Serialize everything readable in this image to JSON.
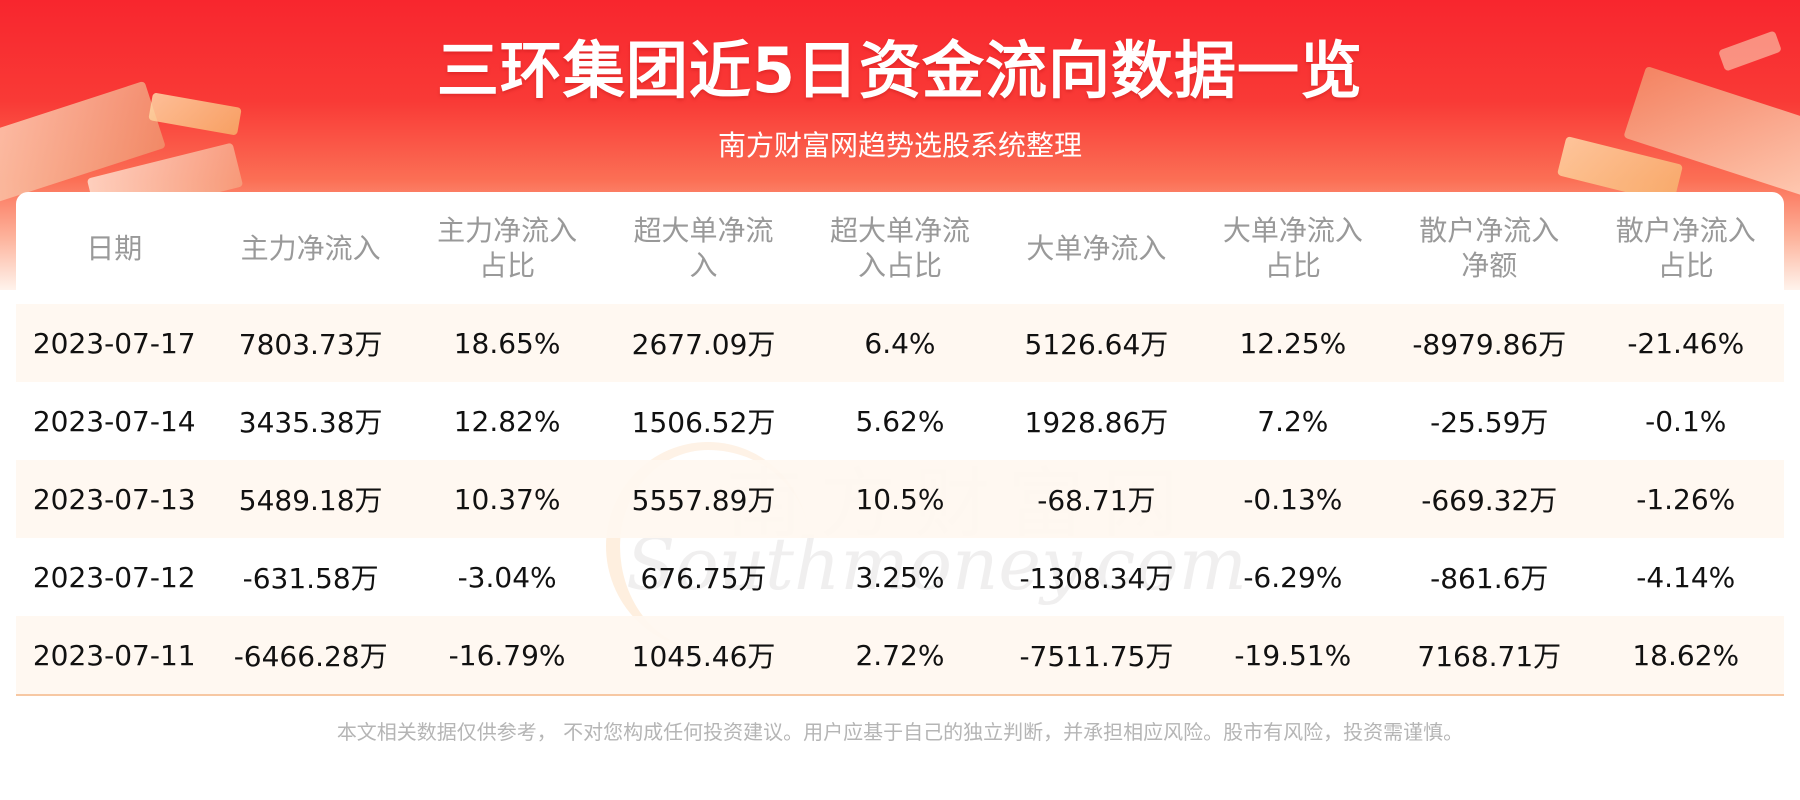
{
  "header": {
    "title": "三环集团近5日资金流向数据一览",
    "subtitle": "南方财富网趋势选股系统整理"
  },
  "table": {
    "columns": [
      "日期",
      "主力净流入",
      "主力净流入占比",
      "超大单净流入",
      "超大单净流入占比",
      "大单净流入",
      "大单净流入占比",
      "散户净流入净额",
      "散户净流入占比"
    ],
    "rows": [
      [
        "2023-07-17",
        "7803.73万",
        "18.65%",
        "2677.09万",
        "6.4%",
        "5126.64万",
        "12.25%",
        "-8979.86万",
        "-21.46%"
      ],
      [
        "2023-07-14",
        "3435.38万",
        "12.82%",
        "1506.52万",
        "5.62%",
        "1928.86万",
        "7.2%",
        "-25.59万",
        "-0.1%"
      ],
      [
        "2023-07-13",
        "5489.18万",
        "10.37%",
        "5557.89万",
        "10.5%",
        "-68.71万",
        "-0.13%",
        "-669.32万",
        "-1.26%"
      ],
      [
        "2023-07-12",
        "-631.58万",
        "-3.04%",
        "676.75万",
        "3.25%",
        "-1308.34万",
        "-6.29%",
        "-861.6万",
        "-4.14%"
      ],
      [
        "2023-07-11",
        "-6466.28万",
        "-16.79%",
        "1045.46万",
        "2.72%",
        "-7511.75万",
        "-19.51%",
        "7168.71万",
        "18.62%"
      ]
    ]
  },
  "watermark": {
    "cn": "南方财富网",
    "en": "Southmoney.com"
  },
  "footer": {
    "disclaimer": "本文相关数据仅供参考， 不对您构成任何投资建议。用户应基于自己的独立判断，并承担相应风险。股市有风险，投资需谨慎。"
  },
  "colors": {
    "banner_red": "#f8262e",
    "header_text": "#999999",
    "row_stripe": "#fff7f0",
    "divider": "#f7c8a3",
    "disclaimer_text": "#b5b5b5"
  }
}
